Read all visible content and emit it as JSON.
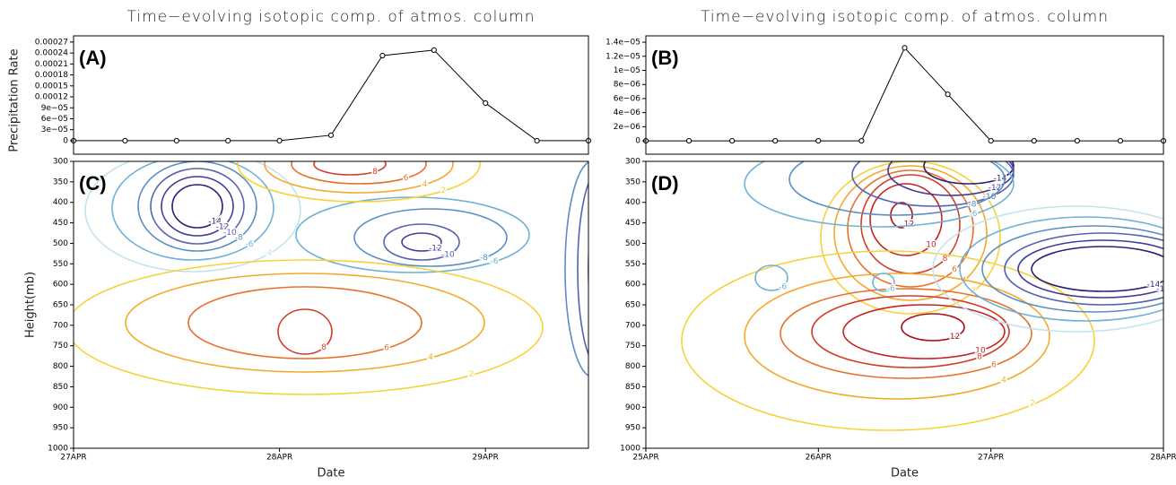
{
  "chart_data": [
    {
      "type": "line",
      "panel": "(A)",
      "title": "Time−evolving isotopic comp. of atmos. column",
      "ylabel": "Precipitation Rate",
      "categories": [
        null,
        null,
        null,
        null,
        null,
        null,
        null,
        null,
        null,
        null,
        null
      ],
      "values": [
        0,
        0,
        0,
        0,
        0,
        1.5e-05,
        0.000233,
        0.000248,
        0.000103,
        0,
        0
      ],
      "color": "#000000",
      "ylim": [
        -3.7e-05,
        0.000287
      ],
      "yticks": [
        0,
        {
          "value": 3e-05,
          "label": "3e−05"
        },
        {
          "value": 6e-05,
          "label": "6e−05"
        },
        {
          "value": 9e-05,
          "label": "9e−05"
        },
        0.00012,
        0.00015,
        0.00018,
        0.00021,
        0.00024,
        0.00027
      ]
    },
    {
      "type": "contour",
      "panel": "(C)",
      "ylabel": "Height(mb)",
      "xlabel": "Date",
      "categories": [
        "27APR",
        "28APR",
        "29APR"
      ],
      "ylim": [
        1000,
        300
      ],
      "yticks": [
        300,
        350,
        400,
        450,
        500,
        550,
        600,
        650,
        700,
        750,
        800,
        850,
        900,
        950,
        1000
      ],
      "contours": [
        {
          "level": -14,
          "color": "#2c1f78"
        },
        {
          "level": -12,
          "color": "#3f3a96"
        },
        {
          "level": -10,
          "color": "#5563b0"
        },
        {
          "level": -8,
          "color": "#5b8ec4"
        },
        {
          "level": -6,
          "color": "#6fb2d6"
        },
        {
          "level": -4,
          "color": "#c4e3ee"
        },
        {
          "level": 2,
          "color": "#f5d23a"
        },
        {
          "level": 4,
          "color": "#f4a92b"
        },
        {
          "level": 6,
          "color": "#e8702b"
        },
        {
          "level": 8,
          "color": "#d43c2a"
        }
      ]
    },
    {
      "type": "line",
      "panel": "(B)",
      "title": "Time−evolving isotopic comp. of atmos. column",
      "categories": [
        null,
        null,
        null,
        null,
        null,
        null,
        null,
        null,
        null,
        null,
        null,
        null,
        null
      ],
      "values": [
        0,
        0,
        0,
        0,
        0,
        0,
        1.32e-05,
        6.6e-06,
        0,
        0,
        0,
        0,
        0
      ],
      "color": "#000000",
      "ylim": [
        -1.9e-06,
        1.49e-05
      ],
      "yticks": [
        0,
        {
          "value": 2e-06,
          "label": "2e−06"
        },
        {
          "value": 4e-06,
          "label": "4e−06"
        },
        {
          "value": 6e-06,
          "label": "6e−06"
        },
        {
          "value": 8e-06,
          "label": "8e−06"
        },
        {
          "value": 1e-05,
          "label": "1e−05"
        },
        {
          "value": 1.2e-05,
          "label": "1.2e−05"
        },
        {
          "value": 1.4e-05,
          "label": "1.4e−05"
        }
      ]
    },
    {
      "type": "contour",
      "panel": "(D)",
      "xlabel": "Date",
      "categories": [
        "25APR",
        "26APR",
        "27APR",
        "28APR"
      ],
      "ylim": [
        1000,
        300
      ],
      "yticks": [
        300,
        350,
        400,
        450,
        500,
        550,
        600,
        650,
        700,
        750,
        800,
        850,
        900,
        950,
        1000
      ],
      "contours": [
        {
          "level": -14,
          "color": "#2c1f78"
        },
        {
          "level": -12,
          "color": "#3f3a96"
        },
        {
          "level": -10,
          "color": "#5563b0"
        },
        {
          "level": -8,
          "color": "#5b8ec4"
        },
        {
          "level": -6,
          "color": "#6fb2d6"
        },
        {
          "level": -4,
          "color": "#c4e3ee"
        },
        {
          "level": 2,
          "color": "#f5d23a"
        },
        {
          "level": 4,
          "color": "#f4a92b"
        },
        {
          "level": 6,
          "color": "#e8702b"
        },
        {
          "level": 8,
          "color": "#d43c2a"
        },
        {
          "level": 10,
          "color": "#c42322"
        },
        {
          "level": 12,
          "color": "#a50f15"
        }
      ]
    }
  ]
}
